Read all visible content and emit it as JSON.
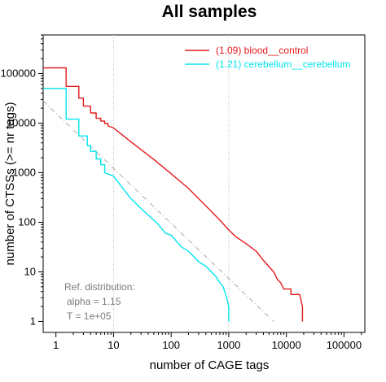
{
  "chart_data": {
    "type": "line",
    "title": "All samples",
    "xlabel": "number of CAGE tags",
    "ylabel": "number of CTSSs (>= nr tags)",
    "x_scale": "log",
    "y_scale": "log",
    "xlim": [
      0.6,
      230000
    ],
    "ylim": [
      0.6,
      600000
    ],
    "x_ticks": [
      1,
      10,
      100,
      1000,
      10000,
      100000
    ],
    "x_tick_labels": [
      "1",
      "10",
      "100",
      "1000",
      "10000",
      "100000"
    ],
    "y_ticks": [
      1,
      10,
      100,
      1000,
      10000,
      100000
    ],
    "y_tick_labels": [
      "1",
      "10",
      "100",
      "1000",
      "10000",
      "100000"
    ],
    "grid": "vertical dotted lines at x = 10 and x = 1000",
    "vlines": [
      10,
      1000
    ],
    "legend_position": "top-right",
    "series": [
      {
        "name": "(1.09) blood__control",
        "color": "#e31a1c",
        "points": [
          [
            0.6,
            130000
          ],
          [
            1.5,
            130000
          ],
          [
            1.5,
            55000
          ],
          [
            2.5,
            55000
          ],
          [
            2.5,
            32000
          ],
          [
            3,
            32000
          ],
          [
            3,
            22000
          ],
          [
            4,
            22000
          ],
          [
            4,
            16000
          ],
          [
            5,
            16000
          ],
          [
            5,
            12500
          ],
          [
            6,
            12500
          ],
          [
            6,
            11000
          ],
          [
            7,
            11000
          ],
          [
            7,
            9800
          ],
          [
            8,
            9800
          ],
          [
            8,
            8800
          ],
          [
            10,
            8000
          ],
          [
            20,
            4200
          ],
          [
            50,
            1850
          ],
          [
            100,
            950
          ],
          [
            200,
            480
          ],
          [
            300,
            300
          ],
          [
            500,
            165
          ],
          [
            700,
            110
          ],
          [
            1000,
            70
          ],
          [
            1300,
            52
          ],
          [
            2000,
            37
          ],
          [
            3000,
            26
          ],
          [
            4000,
            17
          ],
          [
            6000,
            10
          ],
          [
            7000,
            7
          ],
          [
            8000,
            6
          ],
          [
            9000,
            4.5
          ],
          [
            12000,
            4.5
          ],
          [
            12000,
            3.5
          ],
          [
            17000,
            3.5
          ],
          [
            19000,
            2
          ],
          [
            19000,
            1
          ]
        ]
      },
      {
        "name": "(1.21) cerebellum__cerebellum",
        "color": "#00e5ee",
        "points": [
          [
            0.6,
            50000
          ],
          [
            1.5,
            50000
          ],
          [
            1.5,
            12000
          ],
          [
            2.5,
            12000
          ],
          [
            2.5,
            5500
          ],
          [
            3.5,
            5500
          ],
          [
            3.5,
            3500
          ],
          [
            4,
            3500
          ],
          [
            4,
            2700
          ],
          [
            5,
            2700
          ],
          [
            5,
            1900
          ],
          [
            6,
            1900
          ],
          [
            6,
            1450
          ],
          [
            7,
            1450
          ],
          [
            7,
            1000
          ],
          [
            9,
            900
          ],
          [
            10,
            850
          ],
          [
            20,
            300
          ],
          [
            30,
            190
          ],
          [
            40,
            140
          ],
          [
            60,
            90
          ],
          [
            80,
            60
          ],
          [
            100,
            55
          ],
          [
            150,
            32
          ],
          [
            200,
            26
          ],
          [
            250,
            20
          ],
          [
            300,
            16
          ],
          [
            400,
            13
          ],
          [
            500,
            10
          ],
          [
            600,
            8
          ],
          [
            700,
            6
          ],
          [
            800,
            5
          ],
          [
            900,
            3.2
          ],
          [
            1000,
            2
          ],
          [
            1000,
            1
          ]
        ]
      }
    ],
    "reference_line": {
      "color": "#aaaaaa",
      "points": [
        [
          0.6,
          28000
        ],
        [
          6000,
          1
        ]
      ]
    },
    "annotation": [
      "Ref. distribution:",
      "alpha = 1.15",
      "T = 1e+05"
    ]
  }
}
